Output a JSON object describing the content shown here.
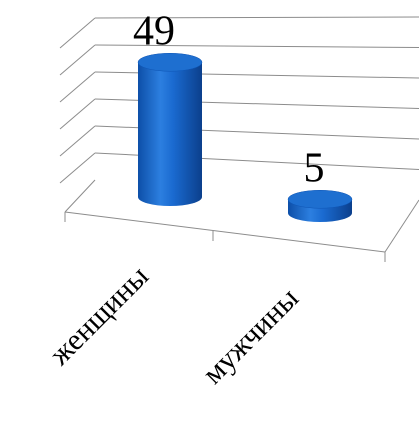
{
  "chart_data": {
    "type": "bar",
    "style": "3d-cylinder",
    "categories": [
      "женщины",
      "мужчины"
    ],
    "values": [
      49,
      5
    ],
    "data_labels": [
      "49",
      "5"
    ],
    "ylim": [
      0,
      60
    ],
    "grid": true,
    "legend": "none",
    "bar_color": "#1565C0",
    "bar_highlight": "#4A90E2",
    "bar_top_color": "#1E6FD0"
  }
}
